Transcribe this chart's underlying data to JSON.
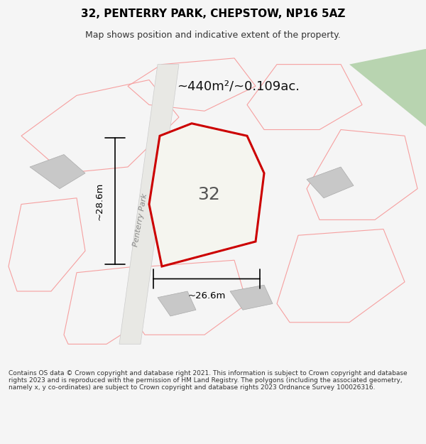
{
  "title_line1": "32, PENTERRY PARK, CHEPSTOW, NP16 5AZ",
  "title_line2": "Map shows position and indicative extent of the property.",
  "footer_text": "Contains OS data © Crown copyright and database right 2021. This information is subject to Crown copyright and database rights 2023 and is reproduced with the permission of HM Land Registry. The polygons (including the associated geometry, namely x, y co-ordinates) are subject to Crown copyright and database rights 2023 Ordnance Survey 100026316.",
  "area_label": "~440m²/~0.109ac.",
  "number_label": "32",
  "width_label": "~26.6m",
  "height_label": "~28.6m",
  "road_label": "Penterry Park",
  "bg_color": "#f5f5f5",
  "map_bg": "#f0eeeb",
  "property_fill": "#f5f5f5",
  "property_edge": "#cc0000",
  "light_red": "#f5a0a0",
  "building_fill": "#d8d8d8",
  "road_fill": "#e8e8e8",
  "footer_bg": "#ffffff"
}
